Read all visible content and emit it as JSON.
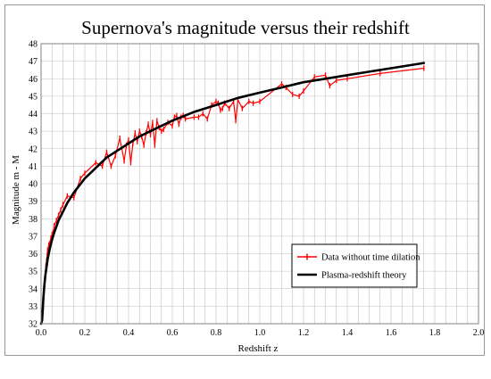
{
  "chart_data": {
    "type": "line",
    "title": "Supernova's magnitude versus their redshift",
    "xlabel": "Redshift z",
    "ylabel": "Magnitude m - M",
    "xlim": [
      0,
      2.0
    ],
    "ylim": [
      32,
      48
    ],
    "x_ticks": [
      "0.0",
      "0.2",
      "0.4",
      "0.6",
      "0.8",
      "1.0",
      "1.2",
      "1.4",
      "1.6",
      "1.8",
      "2.0"
    ],
    "y_ticks": [
      "32",
      "33",
      "34",
      "35",
      "36",
      "37",
      "38",
      "39",
      "40",
      "41",
      "42",
      "43",
      "44",
      "45",
      "46",
      "47",
      "48"
    ],
    "grid": true,
    "legend_position": "lower-right",
    "colors": {
      "data": "#ff0000",
      "theory": "#000000",
      "grid": "#c0c0c0"
    },
    "series": [
      {
        "name": "Data without time dilation",
        "style": "line-with-markers",
        "x": [
          0.01,
          0.012,
          0.015,
          0.018,
          0.02,
          0.022,
          0.025,
          0.028,
          0.03,
          0.035,
          0.04,
          0.045,
          0.05,
          0.055,
          0.06,
          0.07,
          0.08,
          0.09,
          0.1,
          0.12,
          0.15,
          0.18,
          0.2,
          0.25,
          0.28,
          0.3,
          0.32,
          0.34,
          0.36,
          0.38,
          0.39,
          0.4,
          0.41,
          0.42,
          0.43,
          0.44,
          0.45,
          0.46,
          0.47,
          0.48,
          0.49,
          0.5,
          0.51,
          0.52,
          0.53,
          0.54,
          0.55,
          0.56,
          0.58,
          0.6,
          0.61,
          0.62,
          0.63,
          0.64,
          0.65,
          0.66,
          0.7,
          0.72,
          0.74,
          0.76,
          0.78,
          0.8,
          0.81,
          0.82,
          0.83,
          0.84,
          0.86,
          0.88,
          0.89,
          0.9,
          0.92,
          0.95,
          0.97,
          1.0,
          1.1,
          1.12,
          1.15,
          1.18,
          1.2,
          1.25,
          1.3,
          1.32,
          1.35,
          1.4,
          1.55,
          1.75
        ],
        "y": [
          32.8,
          33.5,
          34.0,
          34.4,
          34.9,
          35.3,
          35.6,
          35.9,
          36.2,
          36.5,
          36.6,
          36.9,
          37.1,
          37.2,
          37.6,
          37.9,
          38.2,
          38.5,
          38.8,
          39.3,
          39.2,
          40.3,
          40.6,
          41.2,
          41.0,
          41.8,
          41.0,
          41.6,
          42.6,
          41.3,
          42.2,
          42.5,
          41.2,
          42.3,
          42.9,
          42.4,
          43.0,
          42.7,
          42.2,
          42.9,
          43.4,
          42.8,
          43.5,
          42.2,
          43.6,
          43.2,
          43.0,
          43.1,
          43.5,
          43.3,
          43.8,
          43.9,
          43.4,
          43.8,
          43.9,
          43.7,
          43.8,
          43.8,
          44.0,
          43.7,
          44.5,
          44.7,
          44.6,
          44.2,
          44.3,
          44.6,
          44.3,
          44.7,
          43.6,
          44.8,
          44.3,
          44.7,
          44.6,
          44.7,
          45.7,
          45.5,
          45.1,
          45.0,
          45.3,
          46.1,
          46.2,
          45.6,
          45.9,
          46.0,
          46.3,
          46.6
        ]
      },
      {
        "name": "Plasma-redshift theory",
        "style": "line",
        "x": [
          0.0,
          0.005,
          0.01,
          0.015,
          0.02,
          0.03,
          0.04,
          0.05,
          0.06,
          0.08,
          0.1,
          0.12,
          0.15,
          0.2,
          0.25,
          0.3,
          0.35,
          0.4,
          0.45,
          0.5,
          0.6,
          0.7,
          0.8,
          0.9,
          1.0,
          1.1,
          1.2,
          1.3,
          1.4,
          1.5,
          1.6,
          1.7,
          1.75
        ],
        "y": [
          32.0,
          32.2,
          33.4,
          34.2,
          34.8,
          35.7,
          36.3,
          36.8,
          37.2,
          37.9,
          38.4,
          38.9,
          39.5,
          40.3,
          40.9,
          41.5,
          41.9,
          42.3,
          42.7,
          43.0,
          43.6,
          44.1,
          44.5,
          44.9,
          45.2,
          45.5,
          45.8,
          46.0,
          46.2,
          46.4,
          46.6,
          46.8,
          46.9
        ]
      }
    ]
  }
}
